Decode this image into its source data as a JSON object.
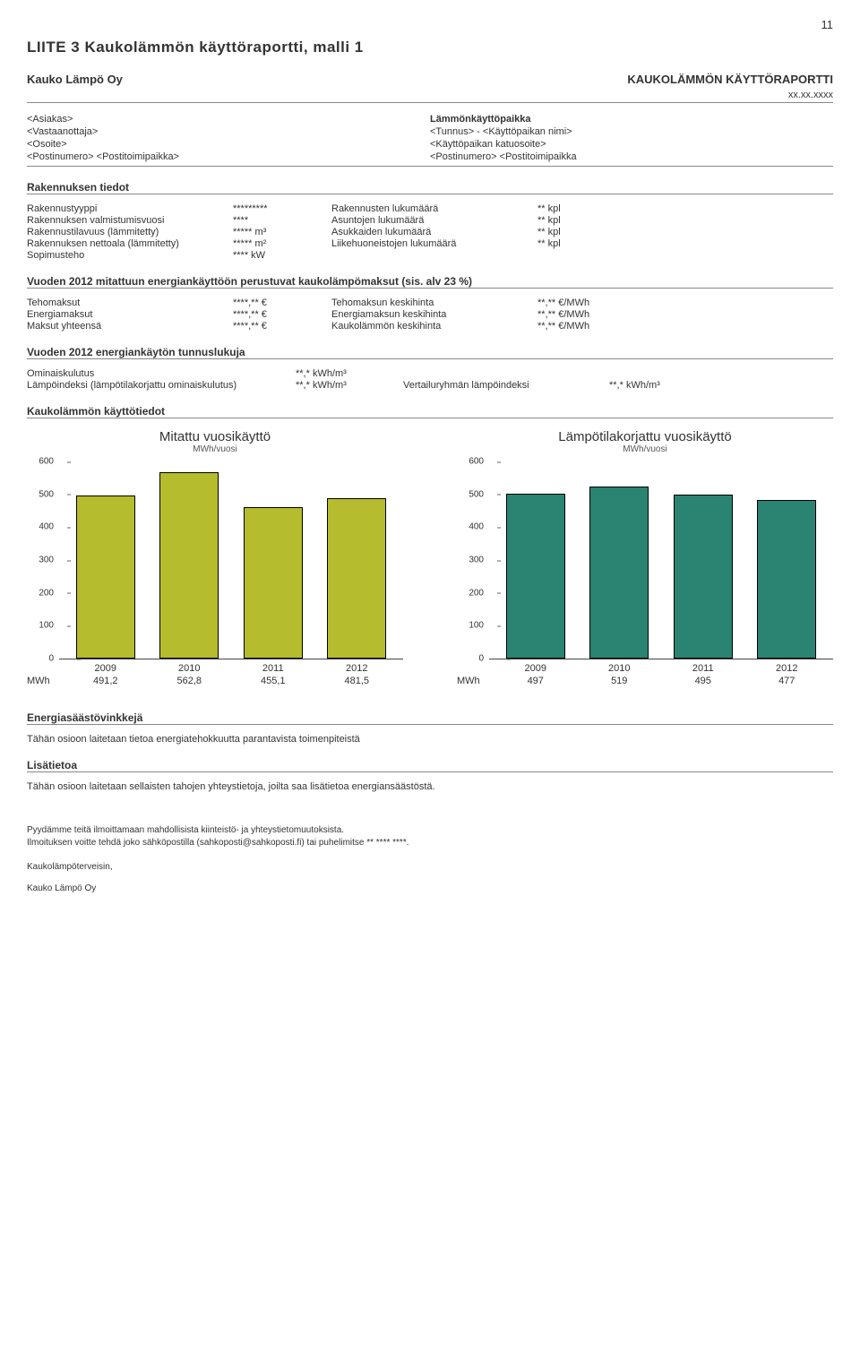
{
  "page_number": "11",
  "title": "LIITE 3   Kaukolämmön käyttöraportti, malli 1",
  "header": {
    "company": "Kauko Lämpö Oy",
    "report_title": "KAUKOLÄMMÖN KÄYTTÖRAPORTTI",
    "date": "xx.xx.xxxx"
  },
  "info_left": [
    "<Asiakas>",
    "<Vastaanottaja>",
    "<Osoite>",
    "<Postinumero> <Postitoimipaikka>"
  ],
  "info_right": [
    "Lämmönkäyttöpaikka",
    "<Tunnus> - <Käyttöpaikan nimi>",
    "<Käyttöpaikan katuosoite>",
    "<Postinumero> <Postitoimipaikka"
  ],
  "rakennus": {
    "title": "Rakennuksen tiedot",
    "rows": [
      {
        "l1": "Rakennustyyppi",
        "l2": "*********",
        "r1": "Rakennusten lukumäärä",
        "r2": "** kpl"
      },
      {
        "l1": "Rakennuksen valmistumisvuosi",
        "l2": "****",
        "r1": "Asuntojen lukumäärä",
        "r2": "** kpl"
      },
      {
        "l1": "Rakennustilavuus (lämmitetty)",
        "l2": "***** m³",
        "r1": "Asukkaiden lukumäärä",
        "r2": "** kpl"
      },
      {
        "l1": "Rakennuksen nettoala (lämmitetty)",
        "l2": "***** m²",
        "r1": "Liikehuoneistojen lukumäärä",
        "r2": "** kpl"
      },
      {
        "l1": "Sopimusteho",
        "l2": "**** kW",
        "r1": "",
        "r2": ""
      }
    ]
  },
  "maksut": {
    "title": "Vuoden 2012 mitattuun energiankäyttöön perustuvat kaukolämpömaksut (sis. alv 23 %)",
    "rows": [
      {
        "l1": "Tehomaksut",
        "l2": "****,** €",
        "r1": "Tehomaksun keskihinta",
        "r2": "**,** €/MWh"
      },
      {
        "l1": "Energiamaksut",
        "l2": "****,** €",
        "r1": "Energiamaksun keskihinta",
        "r2": "**,** €/MWh"
      },
      {
        "l1": "Maksut yhteensä",
        "l2": "****,** €",
        "r1": "Kaukolämmön keskihinta",
        "r2": "**,** €/MWh"
      }
    ]
  },
  "tunnusluvut": {
    "title": "Vuoden 2012 energiankäytön tunnuslukuja",
    "rows": [
      {
        "l1": "Ominaiskulutus",
        "l2": "**,* kWh/m³",
        "r1": "",
        "r2": ""
      },
      {
        "l1": "Lämpöindeksi (lämpötilakorjattu ominaiskulutus)",
        "l2": "**,* kWh/m³",
        "r1": "Vertailuryhmän lämpöindeksi",
        "r2": "**,* kWh/m³"
      }
    ]
  },
  "kayttotiedot_title": "Kaukolämmön käyttötiedot",
  "chart_left": {
    "title": "Mitattu vuosikäyttö",
    "subtitle": "MWh/vuosi",
    "ylim": [
      0,
      600
    ],
    "ytick_step": 100,
    "categories": [
      "2009",
      "2010",
      "2011",
      "2012"
    ],
    "values": [
      491.2,
      562.8,
      455.1,
      481.5
    ],
    "row_label": "MWh",
    "row_values": [
      "491,2",
      "562,8",
      "455,1",
      "481,5"
    ],
    "bar_color": "#b5bc2d",
    "background": "#ffffff"
  },
  "chart_right": {
    "title": "Lämpötilakorjattu vuosikäyttö",
    "subtitle": "MWh/vuosi",
    "ylim": [
      0,
      600
    ],
    "ytick_step": 100,
    "categories": [
      "2009",
      "2010",
      "2011",
      "2012"
    ],
    "values": [
      497,
      519,
      495,
      477
    ],
    "row_label": "MWh",
    "row_values": [
      "497",
      "519",
      "495",
      "477"
    ],
    "bar_color": "#2b8372",
    "background": "#ffffff"
  },
  "energiasaasto": {
    "title": "Energiasäästövinkkejä",
    "text": "Tähän osioon laitetaan tietoa energiatehokkuutta parantavista toimenpiteistä"
  },
  "lisatietoa": {
    "title": "Lisätietoa",
    "text": "Tähän osioon laitetaan sellaisten tahojen yhteystietoja, joilta saa lisätietoa energiansäästöstä."
  },
  "footer": {
    "line1": "Pyydämme teitä ilmoittamaan mahdollisista kiinteistö- ja yhteystietomuutoksista.",
    "line2": "Ilmoituksen voitte tehdä joko sähköpostilla (sahkoposti@sahkoposti.fi) tai puhelimitse ** **** ****.",
    "sign": "Kaukolämpöterveisin,",
    "company": "Kauko Lämpö Oy"
  }
}
